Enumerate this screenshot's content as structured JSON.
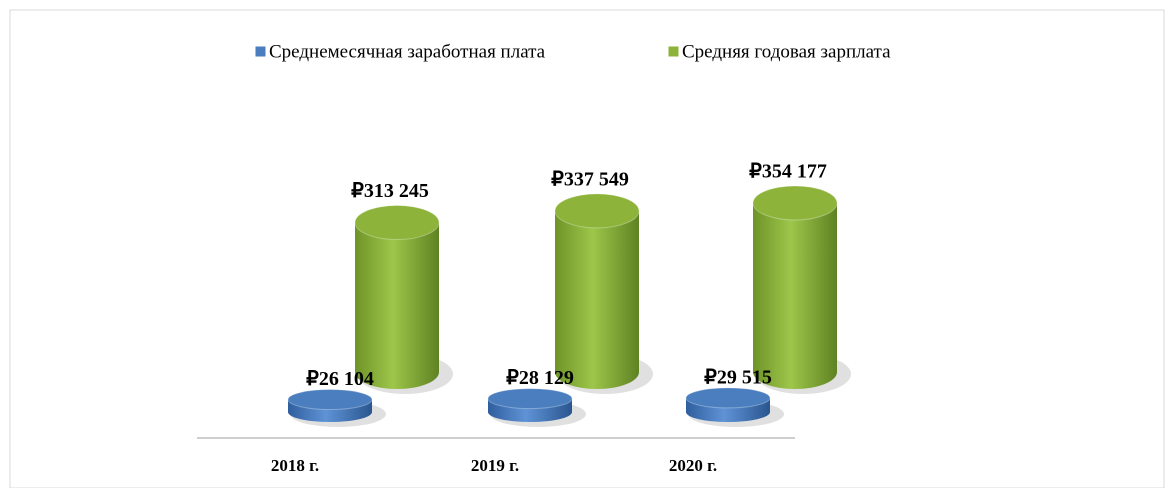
{
  "chart_data": {
    "type": "bar3d",
    "categories": [
      "2018 г.",
      "2019 г.",
      "2020 г."
    ],
    "series": [
      {
        "name": "Среднемесячная заработная плата",
        "color": "#4a7ebf",
        "values": [
          26104,
          28129,
          29515
        ],
        "value_labels": [
          "₽26 104",
          "₽28 129",
          "₽29 515"
        ]
      },
      {
        "name": "Средняя годовая зарплата",
        "color": "#8db33a",
        "values": [
          313245,
          337549,
          354177
        ],
        "value_labels": [
          "₽313 245",
          "₽337 549",
          "₽354 177"
        ]
      }
    ]
  }
}
